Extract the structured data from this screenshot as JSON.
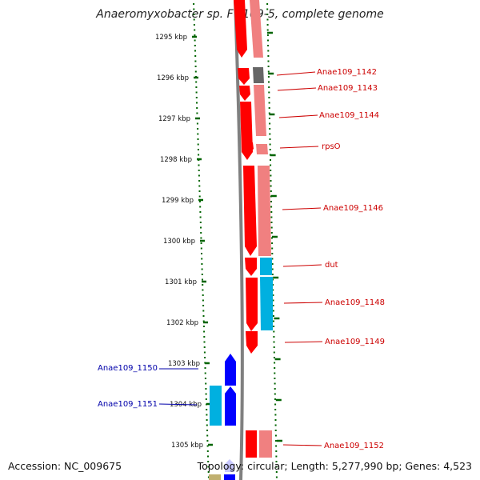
{
  "title": "Anaeromyxobacter sp. Fw109-5, complete genome",
  "accession": "Accession: NC_009675",
  "topology": "Topology: circular; Length: 5,277,990 bp; Genes: 4,523",
  "ticks": [
    "1295 kbp",
    "1296 kbp",
    "1297 kbp",
    "1298 kbp",
    "1299 kbp",
    "1300 kbp",
    "1301 kbp",
    "1302 kbp",
    "1303 kbp",
    "1304 kbp",
    "1305 kbp"
  ],
  "genes": [
    {
      "name": "Anae109_1142",
      "strand": "forward"
    },
    {
      "name": "Anae109_1143",
      "strand": "forward"
    },
    {
      "name": "Anae109_1144",
      "strand": "forward"
    },
    {
      "name": "rpsO",
      "strand": "forward"
    },
    {
      "name": "Anae109_1146",
      "strand": "forward"
    },
    {
      "name": "dut",
      "strand": "forward"
    },
    {
      "name": "Anae109_1148",
      "strand": "forward"
    },
    {
      "name": "Anae109_1149",
      "strand": "forward"
    },
    {
      "name": "Anae109_1152",
      "strand": "forward"
    },
    {
      "name": "Anae109_1150",
      "strand": "reverse"
    },
    {
      "name": "Anae109_1151",
      "strand": "reverse"
    }
  ],
  "colors": {
    "forward_gene": "#ff0000",
    "forward_gene_light": "#f08080",
    "reverse_gene": "#0000ff",
    "reverse_cds": "#00b0e0",
    "backbone": "#808080",
    "tick": "#006400",
    "forward_label": "#cc0000",
    "reverse_label": "#0000aa",
    "unknown": "#666666",
    "other": "#c0b070"
  }
}
